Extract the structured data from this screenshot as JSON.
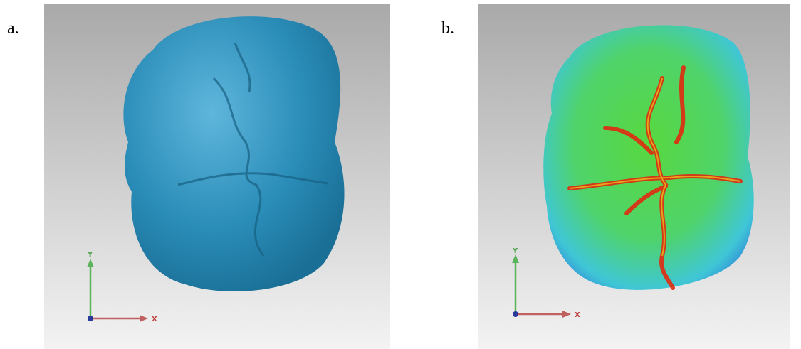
{
  "panels": [
    {
      "label": "a.",
      "axes": {
        "y": "Y",
        "x": "X"
      }
    },
    {
      "label": "b.",
      "axes": {
        "y": "Y",
        "x": "X"
      }
    }
  ]
}
